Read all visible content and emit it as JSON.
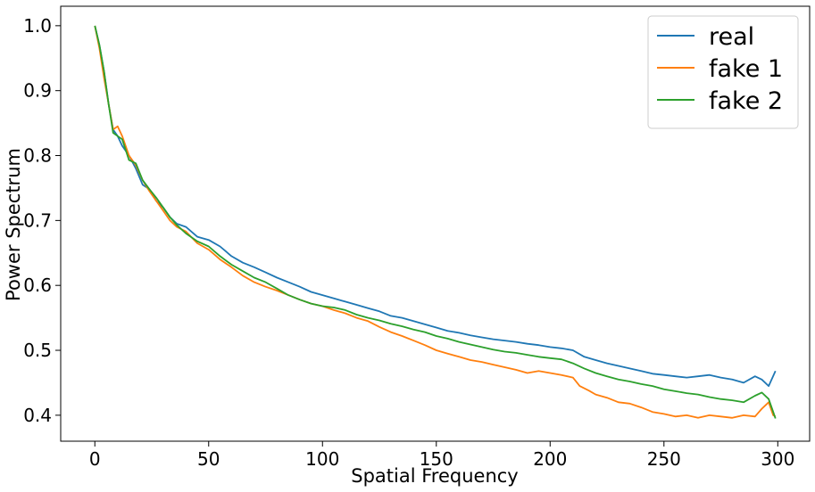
{
  "chart_data": {
    "type": "line",
    "xlabel": "Spatial Frequency",
    "ylabel": "Power Spectrum",
    "xlim": [
      -15,
      314
    ],
    "ylim": [
      0.36,
      1.03
    ],
    "x_ticks": [
      0,
      50,
      100,
      150,
      200,
      250,
      300
    ],
    "y_ticks": [
      0.4,
      0.5,
      0.6,
      0.7,
      0.8,
      0.9,
      1.0
    ],
    "x_tick_labels": [
      "0",
      "50",
      "100",
      "150",
      "200",
      "250",
      "300"
    ],
    "y_tick_labels": [
      "0.4",
      "0.5",
      "0.6",
      "0.7",
      "0.8",
      "0.9",
      "1.0"
    ],
    "grid": false,
    "legend_position": "top-right",
    "series": [
      {
        "name": "real",
        "color": "#1f77b4",
        "points": [
          [
            0,
            1.0
          ],
          [
            2,
            0.97
          ],
          [
            4,
            0.93
          ],
          [
            6,
            0.88
          ],
          [
            8,
            0.84
          ],
          [
            10,
            0.83
          ],
          [
            12,
            0.815
          ],
          [
            15,
            0.8
          ],
          [
            18,
            0.78
          ],
          [
            21,
            0.755
          ],
          [
            24,
            0.748
          ],
          [
            27,
            0.73
          ],
          [
            30,
            0.72
          ],
          [
            33,
            0.705
          ],
          [
            36,
            0.695
          ],
          [
            40,
            0.69
          ],
          [
            45,
            0.675
          ],
          [
            50,
            0.67
          ],
          [
            55,
            0.66
          ],
          [
            60,
            0.645
          ],
          [
            65,
            0.635
          ],
          [
            70,
            0.628
          ],
          [
            75,
            0.62
          ],
          [
            80,
            0.612
          ],
          [
            85,
            0.605
          ],
          [
            90,
            0.598
          ],
          [
            95,
            0.59
          ],
          [
            100,
            0.585
          ],
          [
            105,
            0.58
          ],
          [
            110,
            0.575
          ],
          [
            115,
            0.57
          ],
          [
            120,
            0.565
          ],
          [
            125,
            0.56
          ],
          [
            130,
            0.553
          ],
          [
            135,
            0.55
          ],
          [
            140,
            0.545
          ],
          [
            145,
            0.54
          ],
          [
            150,
            0.535
          ],
          [
            155,
            0.53
          ],
          [
            160,
            0.527
          ],
          [
            165,
            0.523
          ],
          [
            170,
            0.52
          ],
          [
            175,
            0.517
          ],
          [
            180,
            0.515
          ],
          [
            185,
            0.513
          ],
          [
            190,
            0.51
          ],
          [
            195,
            0.508
          ],
          [
            200,
            0.505
          ],
          [
            205,
            0.503
          ],
          [
            210,
            0.5
          ],
          [
            215,
            0.49
          ],
          [
            220,
            0.485
          ],
          [
            225,
            0.48
          ],
          [
            230,
            0.476
          ],
          [
            235,
            0.472
          ],
          [
            240,
            0.468
          ],
          [
            245,
            0.464
          ],
          [
            250,
            0.462
          ],
          [
            255,
            0.46
          ],
          [
            260,
            0.458
          ],
          [
            265,
            0.46
          ],
          [
            270,
            0.462
          ],
          [
            275,
            0.458
          ],
          [
            280,
            0.455
          ],
          [
            285,
            0.45
          ],
          [
            290,
            0.46
          ],
          [
            293,
            0.455
          ],
          [
            296,
            0.445
          ],
          [
            299,
            0.468
          ]
        ]
      },
      {
        "name": "fake 1",
        "color": "#ff7f0e",
        "points": [
          [
            0,
            1.0
          ],
          [
            2,
            0.965
          ],
          [
            4,
            0.92
          ],
          [
            6,
            0.88
          ],
          [
            8,
            0.84
          ],
          [
            10,
            0.845
          ],
          [
            12,
            0.83
          ],
          [
            15,
            0.8
          ],
          [
            18,
            0.785
          ],
          [
            21,
            0.762
          ],
          [
            24,
            0.745
          ],
          [
            27,
            0.73
          ],
          [
            30,
            0.715
          ],
          [
            33,
            0.7
          ],
          [
            36,
            0.69
          ],
          [
            40,
            0.683
          ],
          [
            45,
            0.665
          ],
          [
            50,
            0.655
          ],
          [
            55,
            0.64
          ],
          [
            60,
            0.628
          ],
          [
            65,
            0.615
          ],
          [
            70,
            0.605
          ],
          [
            75,
            0.598
          ],
          [
            80,
            0.592
          ],
          [
            85,
            0.585
          ],
          [
            90,
            0.578
          ],
          [
            95,
            0.572
          ],
          [
            100,
            0.568
          ],
          [
            105,
            0.562
          ],
          [
            110,
            0.557
          ],
          [
            115,
            0.55
          ],
          [
            120,
            0.545
          ],
          [
            125,
            0.536
          ],
          [
            130,
            0.528
          ],
          [
            135,
            0.522
          ],
          [
            140,
            0.515
          ],
          [
            145,
            0.508
          ],
          [
            150,
            0.5
          ],
          [
            155,
            0.495
          ],
          [
            160,
            0.49
          ],
          [
            165,
            0.485
          ],
          [
            170,
            0.482
          ],
          [
            175,
            0.478
          ],
          [
            180,
            0.474
          ],
          [
            185,
            0.47
          ],
          [
            190,
            0.465
          ],
          [
            195,
            0.468
          ],
          [
            200,
            0.465
          ],
          [
            205,
            0.462
          ],
          [
            210,
            0.458
          ],
          [
            213,
            0.445
          ],
          [
            217,
            0.438
          ],
          [
            220,
            0.432
          ],
          [
            225,
            0.427
          ],
          [
            230,
            0.42
          ],
          [
            235,
            0.418
          ],
          [
            240,
            0.412
          ],
          [
            245,
            0.405
          ],
          [
            250,
            0.402
          ],
          [
            255,
            0.398
          ],
          [
            260,
            0.4
          ],
          [
            265,
            0.396
          ],
          [
            270,
            0.4
          ],
          [
            275,
            0.398
          ],
          [
            280,
            0.396
          ],
          [
            285,
            0.4
          ],
          [
            290,
            0.398
          ],
          [
            293,
            0.41
          ],
          [
            296,
            0.42
          ],
          [
            298,
            0.4
          ],
          [
            299,
            0.398
          ]
        ]
      },
      {
        "name": "fake 2",
        "color": "#2ca02c",
        "points": [
          [
            0,
            1.0
          ],
          [
            2,
            0.97
          ],
          [
            4,
            0.93
          ],
          [
            6,
            0.88
          ],
          [
            8,
            0.835
          ],
          [
            10,
            0.83
          ],
          [
            12,
            0.825
          ],
          [
            15,
            0.793
          ],
          [
            18,
            0.788
          ],
          [
            21,
            0.762
          ],
          [
            24,
            0.748
          ],
          [
            27,
            0.735
          ],
          [
            30,
            0.72
          ],
          [
            33,
            0.705
          ],
          [
            36,
            0.693
          ],
          [
            40,
            0.68
          ],
          [
            45,
            0.668
          ],
          [
            50,
            0.66
          ],
          [
            55,
            0.645
          ],
          [
            60,
            0.632
          ],
          [
            65,
            0.622
          ],
          [
            70,
            0.612
          ],
          [
            75,
            0.605
          ],
          [
            80,
            0.595
          ],
          [
            85,
            0.585
          ],
          [
            90,
            0.578
          ],
          [
            95,
            0.572
          ],
          [
            100,
            0.568
          ],
          [
            105,
            0.566
          ],
          [
            110,
            0.562
          ],
          [
            115,
            0.555
          ],
          [
            120,
            0.55
          ],
          [
            125,
            0.546
          ],
          [
            130,
            0.541
          ],
          [
            135,
            0.537
          ],
          [
            140,
            0.532
          ],
          [
            145,
            0.528
          ],
          [
            150,
            0.522
          ],
          [
            155,
            0.518
          ],
          [
            160,
            0.513
          ],
          [
            165,
            0.509
          ],
          [
            170,
            0.505
          ],
          [
            175,
            0.501
          ],
          [
            180,
            0.498
          ],
          [
            185,
            0.496
          ],
          [
            190,
            0.493
          ],
          [
            195,
            0.49
          ],
          [
            200,
            0.488
          ],
          [
            205,
            0.486
          ],
          [
            210,
            0.48
          ],
          [
            215,
            0.472
          ],
          [
            220,
            0.465
          ],
          [
            225,
            0.46
          ],
          [
            230,
            0.455
          ],
          [
            235,
            0.452
          ],
          [
            240,
            0.448
          ],
          [
            245,
            0.445
          ],
          [
            250,
            0.44
          ],
          [
            255,
            0.437
          ],
          [
            260,
            0.434
          ],
          [
            265,
            0.432
          ],
          [
            270,
            0.428
          ],
          [
            275,
            0.425
          ],
          [
            280,
            0.423
          ],
          [
            285,
            0.42
          ],
          [
            290,
            0.43
          ],
          [
            293,
            0.435
          ],
          [
            296,
            0.425
          ],
          [
            298,
            0.405
          ],
          [
            299,
            0.395
          ]
        ]
      }
    ]
  }
}
